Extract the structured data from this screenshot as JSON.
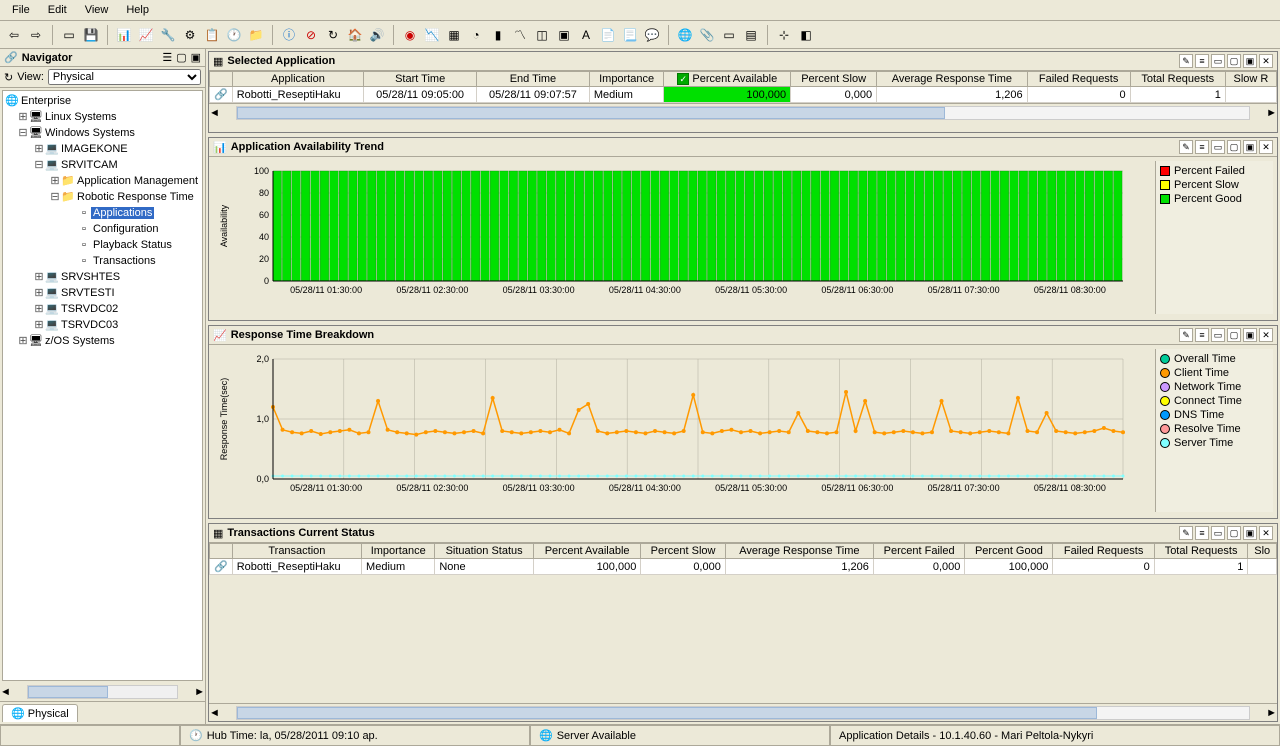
{
  "menu": {
    "file": "File",
    "edit": "Edit",
    "view": "View",
    "help": "Help"
  },
  "navigator": {
    "title": "Navigator",
    "view_label": "View:",
    "view_value": "Physical",
    "tab": "Physical",
    "tree": {
      "root": "Enterprise",
      "linux": "Linux Systems",
      "windows": "Windows Systems",
      "imagekone": "IMAGEKONE",
      "srvitcam": "SRVITCAM",
      "appmgmt": "Application Management",
      "rrt": "Robotic Response Time",
      "applications": "Applications",
      "configuration": "Configuration",
      "playback": "Playback Status",
      "transactions": "Transactions",
      "srvshtes": "SRVSHTES",
      "srvtesti": "SRVTESTI",
      "tsrvdc02": "TSRVDC02",
      "tsrvdc03": "TSRVDC03",
      "zos": "z/OS Systems"
    }
  },
  "selected_app": {
    "title": "Selected Application",
    "columns": [
      "Application",
      "Start Time",
      "End Time",
      "Importance",
      "Percent Available",
      "Percent Slow",
      "Average Response Time",
      "Failed Requests",
      "Total Requests",
      "Slow R"
    ],
    "row": {
      "app": "Robotti_ReseptiHaku",
      "start": "05/28/11 09:05:00",
      "end": "05/28/11 09:07:57",
      "importance": "Medium",
      "pct_avail": "100,000",
      "pct_slow": "0,000",
      "avg_resp": "1,206",
      "failed": "0",
      "total": "1"
    }
  },
  "avail_trend": {
    "title": "Application Availability Trend",
    "ylabel": "Availability",
    "ylim": [
      0,
      100
    ],
    "yticks": [
      0,
      20,
      40,
      60,
      80,
      100
    ],
    "bar_color": "#00e000",
    "bar_count": 90,
    "bar_value": 100,
    "xticks": [
      "05/28/11 01:30:00",
      "05/28/11 02:30:00",
      "05/28/11 03:30:00",
      "05/28/11 04:30:00",
      "05/28/11 05:30:00",
      "05/28/11 06:30:00",
      "05/28/11 07:30:00",
      "05/28/11 08:30:00"
    ],
    "legend": [
      {
        "color": "#ff0000",
        "label": "Percent Failed"
      },
      {
        "color": "#ffff00",
        "label": "Percent Slow"
      },
      {
        "color": "#00e000",
        "label": "Percent Good"
      }
    ],
    "bg": "#ece9d8",
    "grid_color": "#b0ae9e"
  },
  "resp_breakdown": {
    "title": "Response Time Breakdown",
    "ylabel": "Response Time(sec)",
    "ylim": [
      0,
      2.0
    ],
    "yticks": [
      "0,0",
      "1,0",
      "2,0"
    ],
    "line_color": "#ff9900",
    "server_color": "#80ffff",
    "xticks": [
      "05/28/11 01:30:00",
      "05/28/11 02:30:00",
      "05/28/11 03:30:00",
      "05/28/11 04:30:00",
      "05/28/11 05:30:00",
      "05/28/11 06:30:00",
      "05/28/11 07:30:00",
      "05/28/11 08:30:00"
    ],
    "values": [
      1.2,
      0.82,
      0.78,
      0.76,
      0.8,
      0.75,
      0.78,
      0.8,
      0.82,
      0.76,
      0.78,
      1.3,
      0.82,
      0.78,
      0.76,
      0.74,
      0.78,
      0.8,
      0.78,
      0.76,
      0.78,
      0.8,
      0.76,
      1.35,
      0.8,
      0.78,
      0.76,
      0.78,
      0.8,
      0.78,
      0.82,
      0.76,
      1.15,
      1.25,
      0.8,
      0.76,
      0.78,
      0.8,
      0.78,
      0.76,
      0.8,
      0.78,
      0.76,
      0.8,
      1.4,
      0.78,
      0.76,
      0.8,
      0.82,
      0.78,
      0.8,
      0.76,
      0.78,
      0.8,
      0.78,
      1.1,
      0.8,
      0.78,
      0.76,
      0.78,
      1.45,
      0.8,
      1.3,
      0.78,
      0.76,
      0.78,
      0.8,
      0.78,
      0.76,
      0.78,
      1.3,
      0.8,
      0.78,
      0.76,
      0.78,
      0.8,
      0.78,
      0.76,
      1.35,
      0.8,
      0.78,
      1.1,
      0.8,
      0.78,
      0.76,
      0.78,
      0.8,
      0.85,
      0.8,
      0.78
    ],
    "server_value": 0.05,
    "legend": [
      {
        "color": "#00cc99",
        "label": "Overall Time"
      },
      {
        "color": "#ff9900",
        "label": "Client Time"
      },
      {
        "color": "#cc99ff",
        "label": "Network Time"
      },
      {
        "color": "#ffff00",
        "label": "Connect Time"
      },
      {
        "color": "#0099ff",
        "label": "DNS Time"
      },
      {
        "color": "#ff9999",
        "label": "Resolve Time"
      },
      {
        "color": "#80ffff",
        "label": "Server Time"
      }
    ],
    "grid_step": 12
  },
  "trans_status": {
    "title": "Transactions Current Status",
    "columns": [
      "Transaction",
      "Importance",
      "Situation Status",
      "Percent Available",
      "Percent Slow",
      "Average Response Time",
      "Percent Failed",
      "Percent Good",
      "Failed Requests",
      "Total Requests",
      "Slo"
    ],
    "row": {
      "trans": "Robotti_ReseptiHaku",
      "importance": "Medium",
      "situation": "None",
      "pct_avail": "100,000",
      "pct_slow": "0,000",
      "avg_resp": "1,206",
      "pct_failed": "0,000",
      "pct_good": "100,000",
      "failed": "0",
      "total": "1"
    }
  },
  "status": {
    "hub": "Hub Time: la, 05/28/2011 09:10 ap.",
    "server": "Server Available",
    "details": "Application Details - 10.1.40.60 - Mari Peltola-Nykyri"
  }
}
